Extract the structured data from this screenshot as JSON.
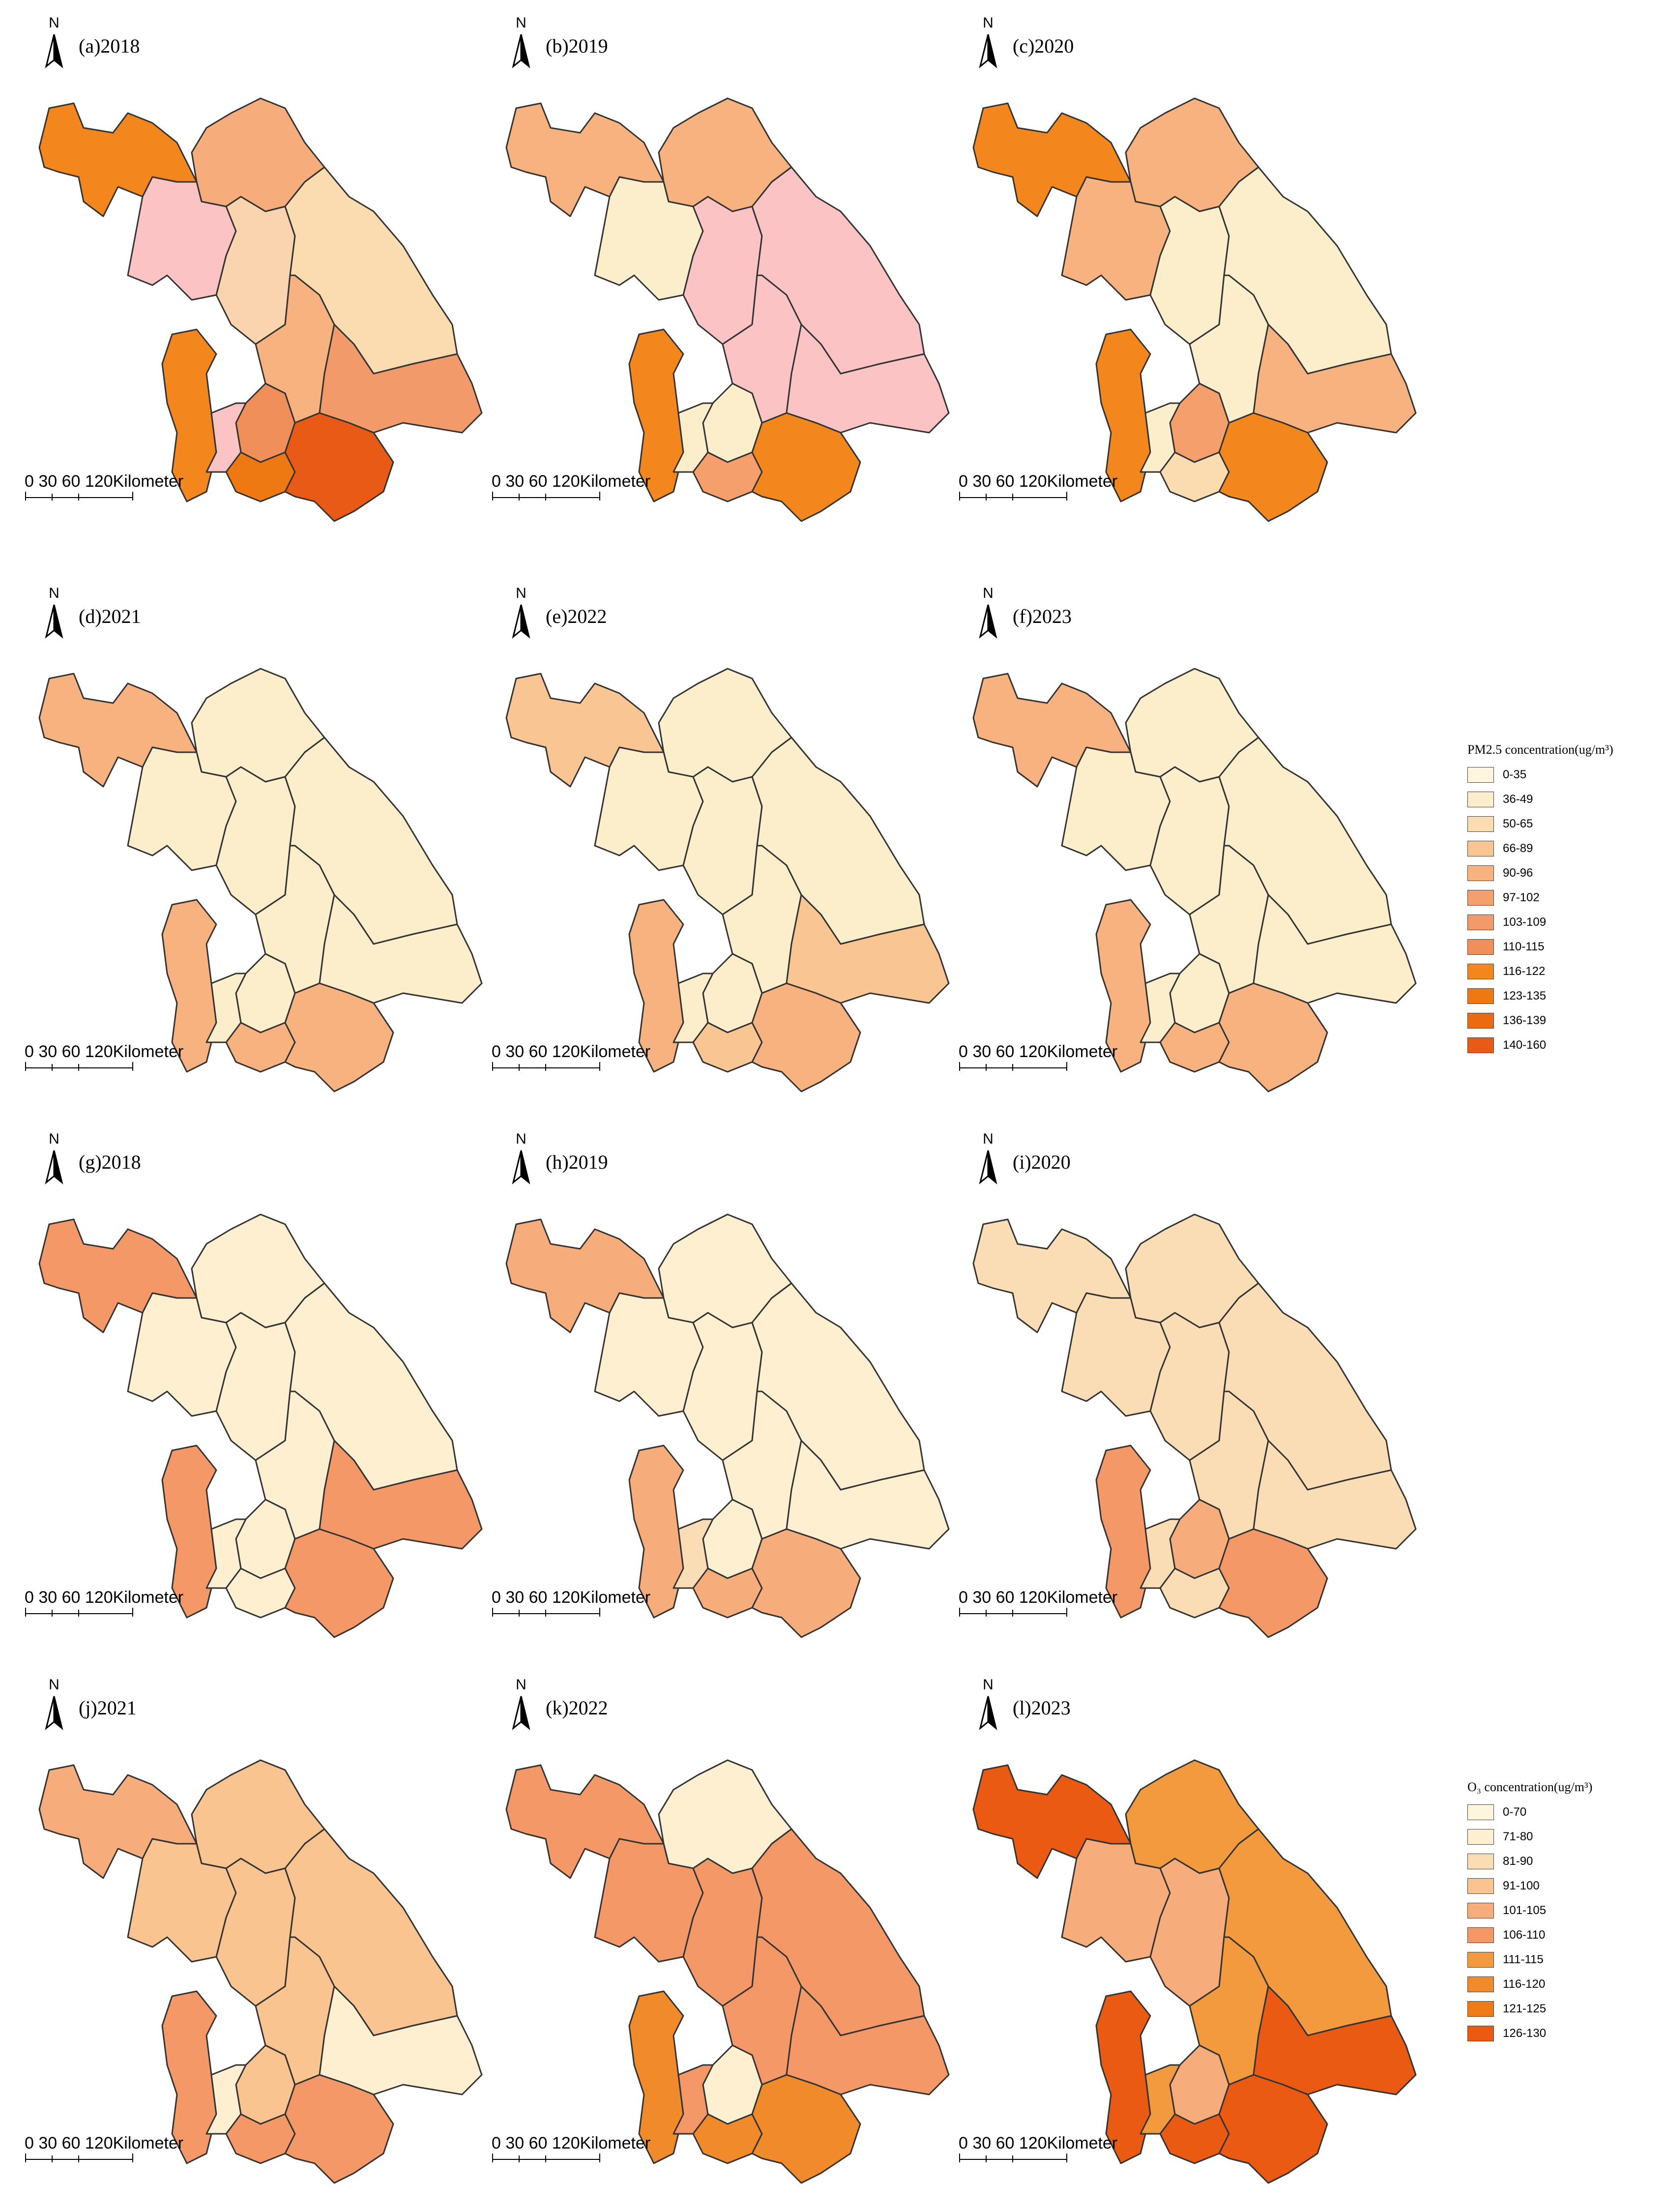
{
  "pm25_legend": {
    "title": "PM2.5 concentration(ug/m³)",
    "classes": [
      {
        "label": "0-35",
        "color": "#fdf5dd"
      },
      {
        "label": "36-49",
        "color": "#fdeecb"
      },
      {
        "label": "50-65",
        "color": "#fbdcb0"
      },
      {
        "label": "66-89",
        "color": "#f9c593"
      },
      {
        "label": "90-96",
        "color": "#f7b27f"
      },
      {
        "label": "97-102",
        "color": "#f5a06c"
      },
      {
        "label": "103-109",
        "color": "#f39a6a"
      },
      {
        "label": "110-115",
        "color": "#f08f5a"
      },
      {
        "label": "116-122",
        "color": "#f3861c"
      },
      {
        "label": "123-135",
        "color": "#ee7812"
      },
      {
        "label": "136-139",
        "color": "#ec6a10"
      },
      {
        "label": "140-160",
        "color": "#e85a16"
      }
    ]
  },
  "o3_legend": {
    "title": "O₃ concentration(ug/m³)",
    "classes": [
      {
        "label": "0-70",
        "color": "#fdf6df"
      },
      {
        "label": "71-80",
        "color": "#fdefcf"
      },
      {
        "label": "81-90",
        "color": "#fbddb5"
      },
      {
        "label": "91-100",
        "color": "#f9c48f"
      },
      {
        "label": "101-105",
        "color": "#f7ac7b"
      },
      {
        "label": "106-110",
        "color": "#f59868"
      },
      {
        "label": "111-115",
        "color": "#f39a3f"
      },
      {
        "label": "116-120",
        "color": "#f18a2a"
      },
      {
        "label": "121-125",
        "color": "#ef7a18"
      },
      {
        "label": "126-130",
        "color": "#ea5a12"
      }
    ]
  },
  "scale_bar": {
    "label": "0  30  60    120Kilometer"
  },
  "north_arrow": {
    "letter": "N"
  },
  "panels": [
    {
      "label": "(a)2018",
      "variable": "PM2.5",
      "year": "2018",
      "fills": [
        "#f3861c",
        "#f7ac7b",
        "#fbc3c4",
        "#f9d4ae",
        "#fbdcb0",
        "#f7b27f",
        "#f39a6a",
        "#f08f5a",
        "#f3861c",
        "#fbc3c4",
        "#ee7812",
        "#e85a16"
      ]
    },
    {
      "label": "(b)2019",
      "variable": "PM2.5",
      "year": "2019",
      "fills": [
        "#f7b27f",
        "#f7b27f",
        "#fdeecb",
        "#fbc3c4",
        "#fbc3c4",
        "#fbc3c4",
        "#fbc3c4",
        "#fdeecb",
        "#f3861c",
        "#fdeecb",
        "#f5a06c",
        "#f3861c"
      ]
    },
    {
      "label": "(c)2020",
      "variable": "PM2.5",
      "year": "2020",
      "fills": [
        "#f3861c",
        "#f7b27f",
        "#f7b27f",
        "#fdeecb",
        "#fdeecb",
        "#fdeecb",
        "#f7b27f",
        "#f5a06c",
        "#f3861c",
        "#fdeecb",
        "#fbdcb0",
        "#f3861c"
      ]
    },
    {
      "label": "(d)2021",
      "variable": "PM2.5",
      "year": "2021",
      "fills": [
        "#f7b27f",
        "#fdeecb",
        "#fdeecb",
        "#fdeecb",
        "#fdeecb",
        "#fdeecb",
        "#fdeecb",
        "#fdeecb",
        "#f7b27f",
        "#fdeecb",
        "#f7b27f",
        "#f7b27f"
      ]
    },
    {
      "label": "(e)2022",
      "variable": "PM2.5",
      "year": "2022",
      "fills": [
        "#f9c593",
        "#fdeecb",
        "#fdeecb",
        "#fdeecb",
        "#fdeecb",
        "#fdeecb",
        "#f9c593",
        "#fdeecb",
        "#f7b27f",
        "#fdeecb",
        "#f9c593",
        "#f7b27f"
      ]
    },
    {
      "label": "(f)2023",
      "variable": "PM2.5",
      "year": "2023",
      "fills": [
        "#f7b27f",
        "#fdeecb",
        "#fdeecb",
        "#fdeecb",
        "#fdeecb",
        "#fdeecb",
        "#fdeecb",
        "#fdeecb",
        "#f7b27f",
        "#fdeecb",
        "#f7b27f",
        "#f7b27f"
      ]
    },
    {
      "label": "(g)2018",
      "variable": "O3",
      "year": "2018",
      "fills": [
        "#f59868",
        "#fdefcf",
        "#fdefcf",
        "#fdefcf",
        "#fdefcf",
        "#fdefcf",
        "#f59868",
        "#fdefcf",
        "#f59868",
        "#fdefcf",
        "#fdefcf",
        "#f59868"
      ]
    },
    {
      "label": "(h)2019",
      "variable": "O3",
      "year": "2019",
      "fills": [
        "#f7ac7b",
        "#fdefcf",
        "#fdefcf",
        "#fdefcf",
        "#fdefcf",
        "#fdefcf",
        "#fdefcf",
        "#fdefcf",
        "#f7ac7b",
        "#fbddb5",
        "#f7ac7b",
        "#f7ac7b"
      ]
    },
    {
      "label": "(i)2020",
      "variable": "O3",
      "year": "2020",
      "fills": [
        "#fbddb5",
        "#fbddb5",
        "#fbddb5",
        "#fbddb5",
        "#fbddb5",
        "#fbddb5",
        "#fbddb5",
        "#f7ac7b",
        "#f59868",
        "#fbddb5",
        "#fbddb5",
        "#f59868"
      ]
    },
    {
      "label": "(j)2021",
      "variable": "O3",
      "year": "2021",
      "fills": [
        "#f7ac7b",
        "#f9c48f",
        "#f9c48f",
        "#f9c48f",
        "#f9c48f",
        "#f9c48f",
        "#fdefcf",
        "#f9c48f",
        "#f59868",
        "#fdefcf",
        "#f59868",
        "#f59868"
      ]
    },
    {
      "label": "(k)2022",
      "variable": "O3",
      "year": "2022",
      "fills": [
        "#f59868",
        "#fdefcf",
        "#f59868",
        "#f59868",
        "#f59868",
        "#f59868",
        "#f59868",
        "#fdefcf",
        "#f18a2a",
        "#f59868",
        "#f18a2a",
        "#f18a2a"
      ]
    },
    {
      "label": "(l)2023",
      "variable": "O3",
      "year": "2023",
      "fills": [
        "#ea5a12",
        "#f39a3f",
        "#f7ac7b",
        "#f7ac7b",
        "#f39a3f",
        "#f39a3f",
        "#ea5a12",
        "#f7ac7b",
        "#ea5a12",
        "#f39a3f",
        "#ea5a12",
        "#ea5a12"
      ]
    }
  ]
}
